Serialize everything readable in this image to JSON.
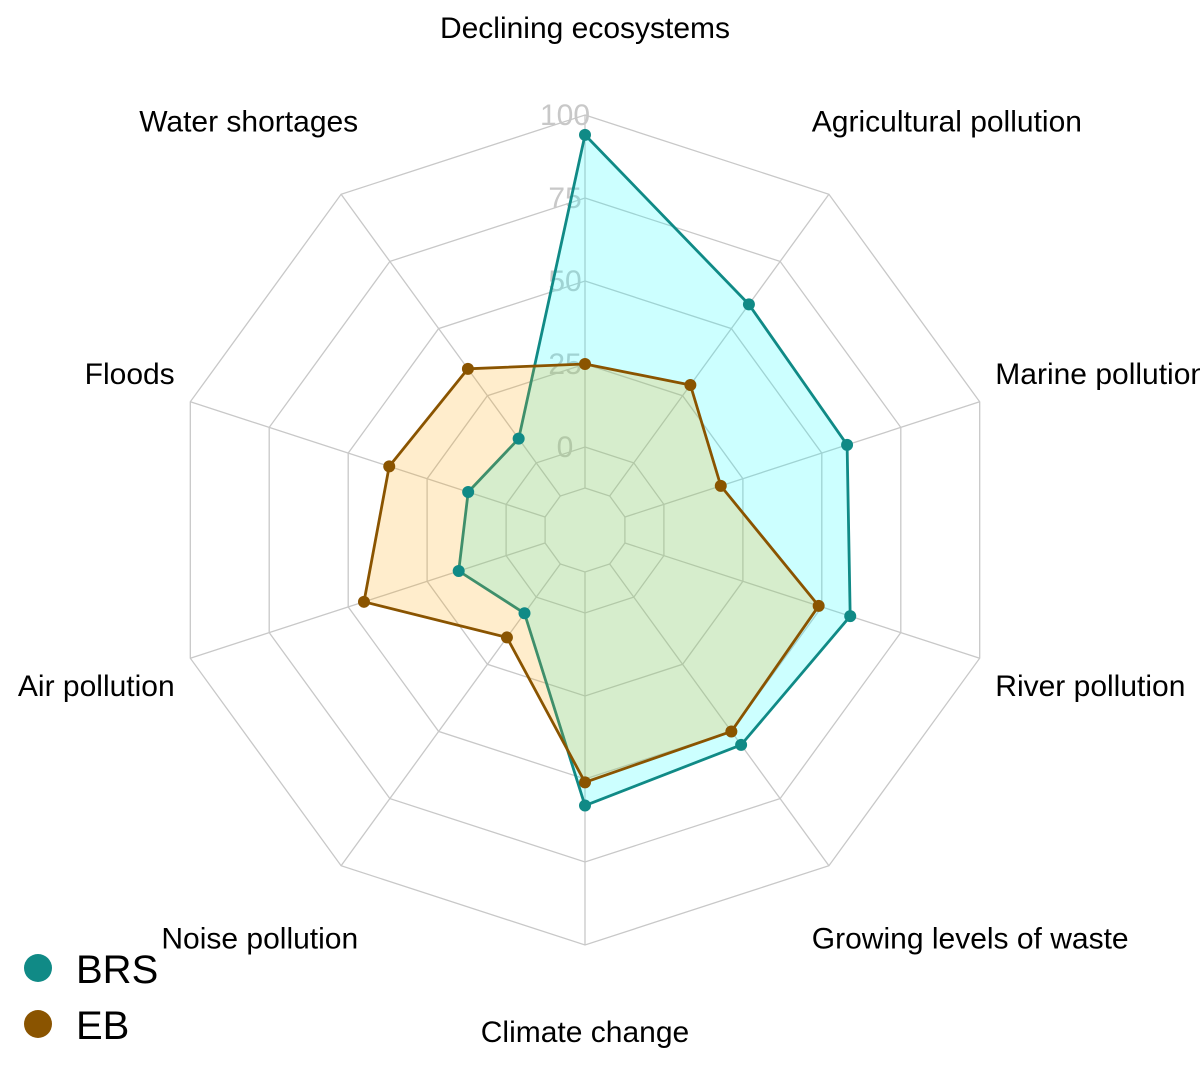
{
  "chart_data": {
    "type": "radar",
    "categories": [
      "Declining ecosystems",
      "Agricultural pollution",
      "Marine pollution",
      "River pollution",
      "Growing levels of waste",
      "Climate change",
      "Noise pollution",
      "Air pollution",
      "Floods",
      "Water shortages"
    ],
    "ticks": [
      0,
      25,
      50,
      75,
      100
    ],
    "rlim": [
      0,
      100
    ],
    "series": [
      {
        "name": "BRS",
        "color": "#108a86",
        "fill": "#00ffff",
        "values": [
          94,
          59,
          58,
          59,
          55,
          58,
          6,
          15,
          12,
          9
        ]
      },
      {
        "name": "EB",
        "color": "#8a5400",
        "fill": "#ffa500",
        "values": [
          25,
          29,
          18,
          49,
          50,
          51,
          15,
          45,
          37,
          35
        ]
      }
    ],
    "legend_position": "bottom-left"
  }
}
